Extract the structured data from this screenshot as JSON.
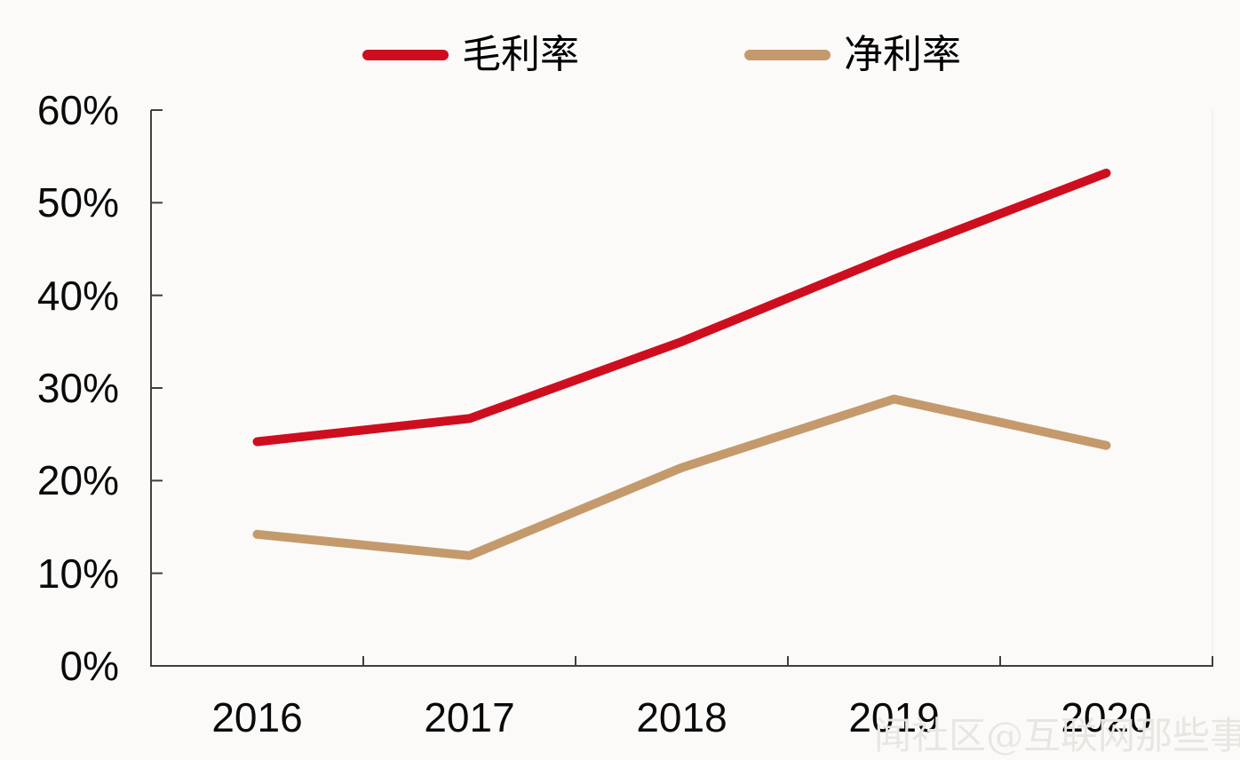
{
  "app": {
    "background_color": "#FBFAF9",
    "axis_color": "#3F3F3F",
    "text_color": "#0a0a0a"
  },
  "chart_data": {
    "type": "line",
    "title": "",
    "categories": [
      "2016",
      "2017",
      "2018",
      "2019",
      "2020"
    ],
    "series": [
      {
        "name": "毛利率",
        "color": "#CE0E1E",
        "values": [
          24.2,
          26.7,
          35.0,
          44.4,
          53.2
        ]
      },
      {
        "name": "净利率",
        "color": "#C49A6C",
        "values": [
          14.2,
          11.9,
          21.4,
          28.8,
          23.8
        ]
      }
    ],
    "ylim": [
      0,
      60
    ],
    "ytick_step": 10,
    "ytick_labels": [
      "0%",
      "10%",
      "20%",
      "30%",
      "40%",
      "50%",
      "60%"
    ],
    "xlabel": "",
    "ylabel": "",
    "grid": false,
    "legend_position": "top"
  },
  "watermark": {
    "text": "闻社区@互联网那些事"
  }
}
